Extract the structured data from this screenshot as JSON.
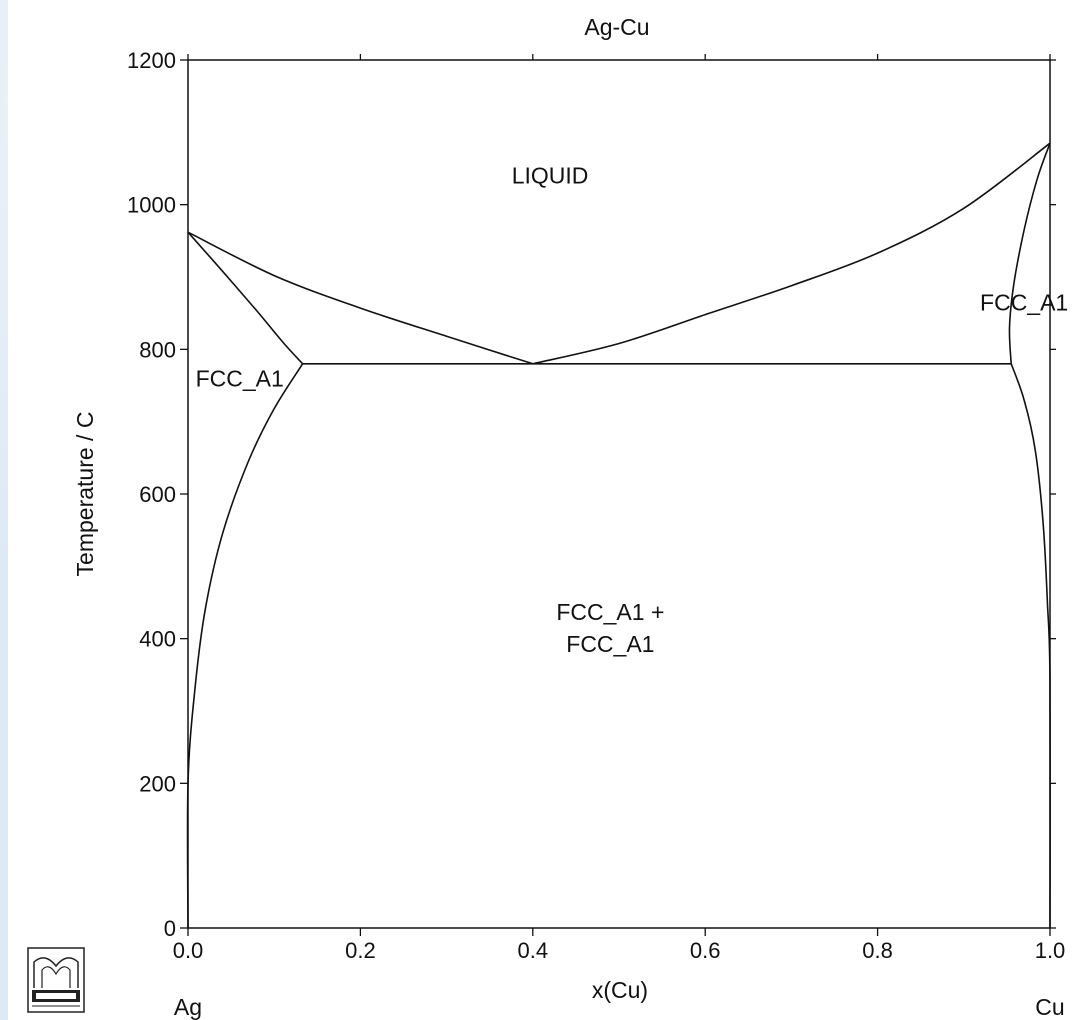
{
  "chart_data": {
    "type": "line",
    "title": "Ag-Cu",
    "xlabel": "x(Cu)",
    "ylabel": "Temperature / C",
    "xlim": [
      0,
      1
    ],
    "ylim": [
      0,
      1200
    ],
    "x_ticks": [
      "0.0",
      "0.2",
      "0.4",
      "0.6",
      "0.8",
      "1.0"
    ],
    "y_ticks": [
      "0",
      "200",
      "400",
      "600",
      "800",
      "1000",
      "1200"
    ],
    "x_end_labels": {
      "left": "Ag",
      "right": "Cu"
    },
    "grid": false,
    "region_labels": [
      {
        "name": "liquid",
        "lines": [
          "LIQUID"
        ],
        "x": 0.42,
        "y": 1040
      },
      {
        "name": "fcc-ag",
        "lines": [
          "FCC_A1"
        ],
        "x": 0.06,
        "y": 760
      },
      {
        "name": "fcc-cu",
        "lines": [
          "FCC_A1"
        ],
        "x": 0.97,
        "y": 865
      },
      {
        "name": "two-phase",
        "lines": [
          "FCC_A1 +",
          "FCC_A1"
        ],
        "x": 0.49,
        "y": 415
      }
    ],
    "series": [
      {
        "key": "liquidus-ag",
        "points": [
          [
            0,
            962
          ],
          [
            0.1,
            902
          ],
          [
            0.2,
            857
          ],
          [
            0.3,
            818
          ],
          [
            0.4,
            780
          ]
        ]
      },
      {
        "key": "solidus-ag",
        "points": [
          [
            0,
            962
          ],
          [
            0.04,
            908
          ],
          [
            0.08,
            853
          ],
          [
            0.11,
            810
          ],
          [
            0.133,
            780
          ]
        ]
      },
      {
        "key": "solvus-ag",
        "points": [
          [
            0.133,
            780
          ],
          [
            0.1,
            718
          ],
          [
            0.07,
            645
          ],
          [
            0.04,
            545
          ],
          [
            0.02,
            440
          ],
          [
            0.008,
            330
          ],
          [
            0,
            200
          ],
          [
            0,
            0
          ]
        ]
      },
      {
        "key": "liquidus-cu",
        "points": [
          [
            0.4,
            780
          ],
          [
            0.5,
            808
          ],
          [
            0.6,
            848
          ],
          [
            0.7,
            888
          ],
          [
            0.8,
            933
          ],
          [
            0.9,
            995
          ],
          [
            1.0,
            1085
          ]
        ]
      },
      {
        "key": "solidus-cu",
        "points": [
          [
            0.955,
            780
          ],
          [
            0.953,
            830
          ],
          [
            0.958,
            890
          ],
          [
            0.97,
            965
          ],
          [
            0.985,
            1035
          ],
          [
            1.0,
            1085
          ]
        ]
      },
      {
        "key": "solvus-cu",
        "points": [
          [
            0.955,
            780
          ],
          [
            0.97,
            730
          ],
          [
            0.983,
            660
          ],
          [
            0.992,
            560
          ],
          [
            0.997,
            450
          ],
          [
            1.0,
            340
          ],
          [
            1.0,
            0
          ]
        ]
      },
      {
        "key": "eutectic",
        "points": [
          [
            0.133,
            780
          ],
          [
            0.955,
            780
          ]
        ]
      }
    ]
  }
}
